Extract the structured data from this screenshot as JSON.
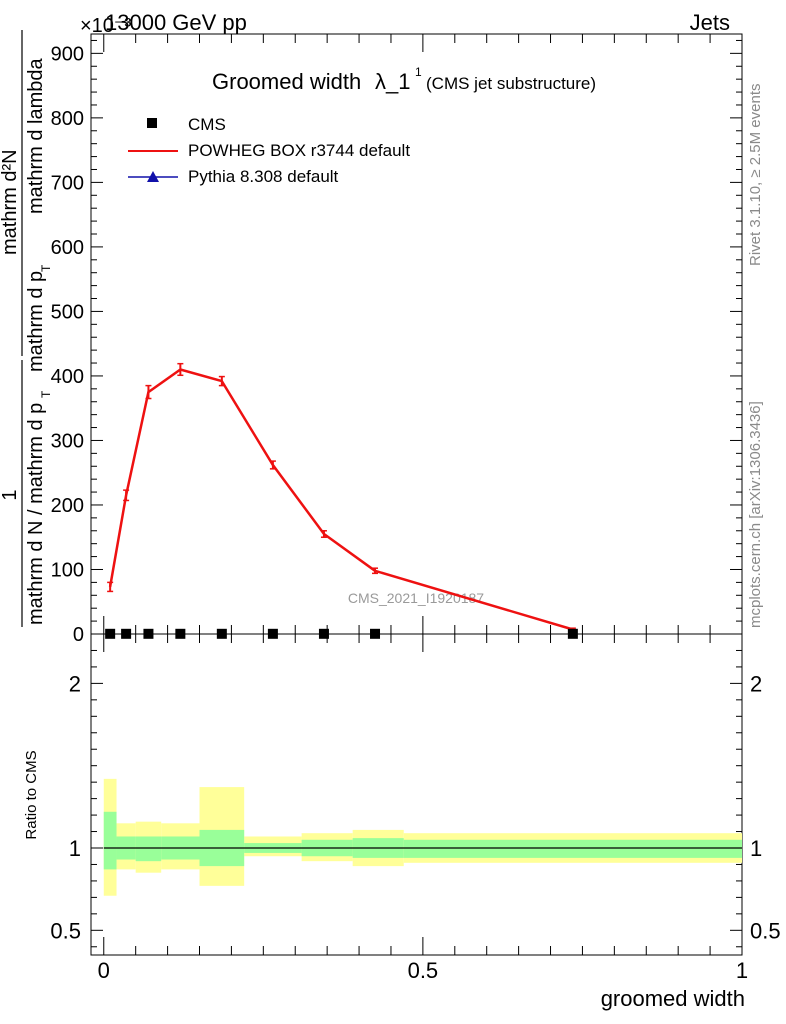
{
  "header": {
    "left": "13000 GeV pp",
    "right": "Jets",
    "exponent": "×10⁻³"
  },
  "side_text": {
    "rivet": "Rivet 3.1.10, ≥ 2.5M events",
    "mcplots": "mcplots.cern.ch [arXiv:1306.3436]"
  },
  "colors": {
    "powheg": "#ee1111",
    "pythia": "#1111aa",
    "band_inner": "#99ff99",
    "band_outer": "#ffff99"
  },
  "chart_data": [
    {
      "type": "line",
      "title": "Groomed width λ_1¹ (CMS jet substructure)",
      "title_main": "Groomed width",
      "title_symbol": "λ_1",
      "title_sup": "1",
      "title_note": "(CMS jet substructure)",
      "watermark": "CMS_2021_I1920187",
      "ylabel_top": "1",
      "ylabel_bottom": "mathrm d N / mathrm d p_T mathrm d N / mathrm d p_T mathrm d lambda",
      "ylabel_parts": {
        "numerator_1": "1",
        "denominator_1": "mathrm d N / mathrm d p",
        "sub_1": "T",
        "numerator_2": "mathrm d²N",
        "denominator_2": "mathrm d p",
        "sub_2": "T",
        "denominator_3": "mathrm d lambda"
      },
      "ylim": [
        0,
        930
      ],
      "yticks": [
        0,
        100,
        200,
        300,
        400,
        500,
        600,
        700,
        800,
        900
      ],
      "legend": [
        "CMS",
        "POWHEG BOX r3744 default",
        "Pythia 8.308 default"
      ],
      "series": [
        {
          "name": "CMS",
          "x": [
            0.01,
            0.035,
            0.07,
            0.12,
            0.185,
            0.265,
            0.345,
            0.425,
            0.735
          ],
          "y": [
            0.3,
            0.3,
            0.3,
            0.3,
            0.3,
            0.3,
            0.3,
            0.3,
            0.3
          ]
        },
        {
          "name": "POWHEG BOX r3744 default",
          "x": [
            0.01,
            0.035,
            0.07,
            0.12,
            0.185,
            0.265,
            0.345,
            0.425,
            0.735
          ],
          "y": [
            73,
            215,
            375,
            410,
            392,
            262,
            155,
            98,
            7
          ],
          "err": [
            7,
            8,
            10,
            9,
            7,
            6,
            5,
            4,
            2
          ]
        }
      ]
    },
    {
      "type": "area",
      "ylabel": "Ratio to CMS",
      "xlabel": "groomed width",
      "xlim": [
        -0.02,
        1.0
      ],
      "xticks": [
        0,
        0.5,
        1
      ],
      "xtick_labels": [
        "0",
        "0.5",
        "1"
      ],
      "ylim": [
        0.35,
        2.3
      ],
      "yticks": [
        0.5,
        1,
        2
      ],
      "ytick_labels": [
        "0.5",
        "1",
        "2"
      ],
      "reference": 1,
      "bins": [
        {
          "x0": 0.0,
          "x1": 0.02,
          "inner": [
            0.87,
            1.22
          ],
          "outer": [
            0.71,
            1.42
          ]
        },
        {
          "x0": 0.02,
          "x1": 0.05,
          "inner": [
            0.93,
            1.07
          ],
          "outer": [
            0.87,
            1.15
          ]
        },
        {
          "x0": 0.05,
          "x1": 0.09,
          "inner": [
            0.92,
            1.07
          ],
          "outer": [
            0.85,
            1.16
          ]
        },
        {
          "x0": 0.09,
          "x1": 0.15,
          "inner": [
            0.93,
            1.07
          ],
          "outer": [
            0.87,
            1.15
          ]
        },
        {
          "x0": 0.15,
          "x1": 0.22,
          "inner": [
            0.89,
            1.11
          ],
          "outer": [
            0.77,
            1.37
          ]
        },
        {
          "x0": 0.22,
          "x1": 0.31,
          "inner": [
            0.97,
            1.03
          ],
          "outer": [
            0.95,
            1.07
          ]
        },
        {
          "x0": 0.31,
          "x1": 0.39,
          "inner": [
            0.95,
            1.05
          ],
          "outer": [
            0.92,
            1.09
          ]
        },
        {
          "x0": 0.39,
          "x1": 0.47,
          "inner": [
            0.94,
            1.06
          ],
          "outer": [
            0.89,
            1.11
          ]
        },
        {
          "x0": 0.47,
          "x1": 1.0,
          "inner": [
            0.94,
            1.05
          ],
          "outer": [
            0.91,
            1.09
          ]
        }
      ]
    }
  ]
}
